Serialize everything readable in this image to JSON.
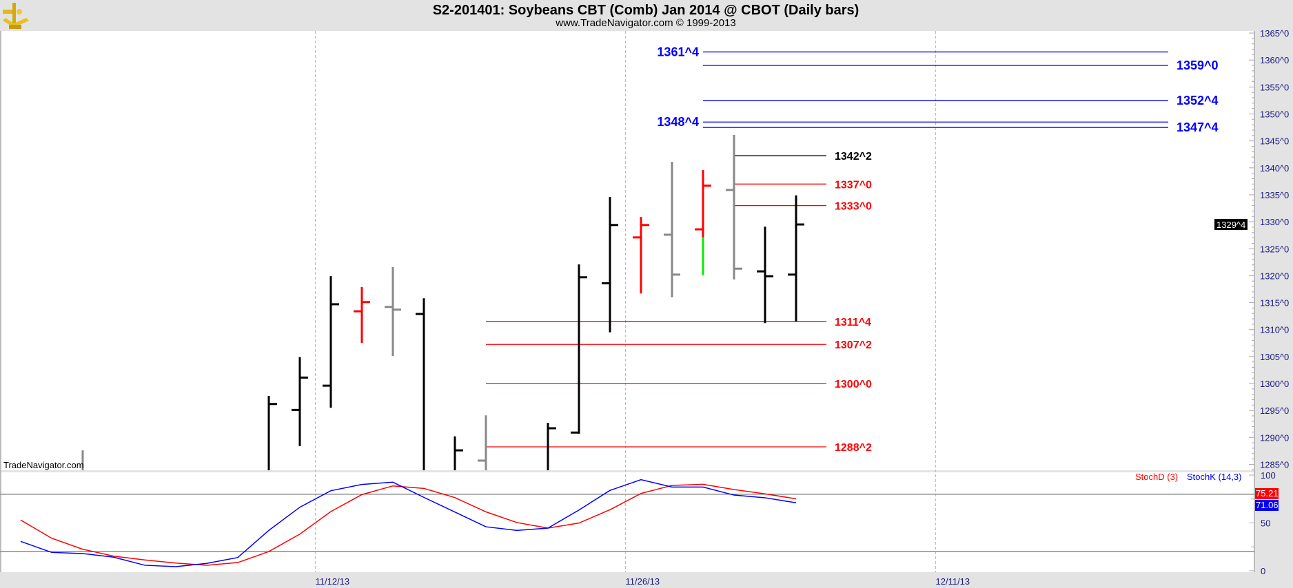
{
  "header": {
    "title": "S2-201401:  Soybeans CBT (Comb) Jan 2014 @ CBOT  (Daily bars)",
    "subtitle": "www.TradeNavigator.com © 1999-2013",
    "logo_icon": "sextant-icon"
  },
  "watermark": "TradeNavigator.com",
  "chart_data": [
    {
      "type": "ohlc-bar",
      "price_axis": {
        "range": [
          1283.8,
          1365.5
        ],
        "tick_step": 5,
        "tick_labels": [
          "1365^0",
          "1360^0",
          "1355^0",
          "1350^0",
          "1345^0",
          "1340^0",
          "1335^0",
          "1330^0",
          "1325^0",
          "1320^0",
          "1315^0",
          "1310^0",
          "1305^0",
          "1300^0",
          "1295^0",
          "1290^0",
          "1285^0"
        ],
        "tick_values": [
          1365,
          1360,
          1355,
          1350,
          1345,
          1340,
          1335,
          1330,
          1325,
          1320,
          1315,
          1310,
          1305,
          1300,
          1295,
          1290,
          1285
        ]
      },
      "price_notation": "cents^eighths",
      "last_price": {
        "label": "1329^4",
        "value": 1329.5
      },
      "date_labels": [
        {
          "label": "11/12/13",
          "date": "11/12"
        },
        {
          "label": "11/26/13",
          "date": "11/26"
        },
        {
          "label": "12/11/13",
          "date": "12/11"
        }
      ],
      "grid": "vertical dashed at date labels",
      "dates": [
        "10/29",
        "10/30",
        "10/31",
        "11/1",
        "11/4",
        "11/5",
        "11/6",
        "11/7",
        "11/8",
        "11/11",
        "11/12",
        "11/13",
        "11/14",
        "11/15",
        "11/18",
        "11/19",
        "11/20",
        "11/21",
        "11/22",
        "11/25",
        "11/26",
        "11/27",
        "11/29",
        "12/2",
        "12/3",
        "12/4",
        "12/5",
        "12/6",
        "12/9",
        "12/10",
        "12/11"
      ],
      "bars": [
        {
          "date": "10/31",
          "open": null,
          "high": 1287.6,
          "low": null,
          "close": null,
          "color": "#888888"
        },
        {
          "date": "11/8",
          "open": null,
          "high": 1297.7,
          "low": null,
          "close": 1296.2,
          "color": "#000000"
        },
        {
          "date": "11/11",
          "open": 1295.1,
          "high": 1304.9,
          "low": 1288.4,
          "close": 1301.1,
          "color": "#000000"
        },
        {
          "date": "11/12",
          "open": 1299.6,
          "high": 1319.9,
          "low": 1295.5,
          "close": 1314.7,
          "color": "#000000"
        },
        {
          "date": "11/13",
          "open": 1313.4,
          "high": 1317.9,
          "low": 1307.5,
          "close": 1315.1,
          "color": "#ff0000"
        },
        {
          "date": "11/14",
          "open": 1314.2,
          "high": 1321.6,
          "low": 1305.1,
          "close": 1313.7,
          "color": "#888888"
        },
        {
          "date": "11/15",
          "open": 1312.9,
          "high": 1315.8,
          "low": null,
          "close": null,
          "color": "#000000"
        },
        {
          "date": "11/18",
          "open": null,
          "high": 1290.2,
          "low": null,
          "close": 1287.6,
          "color": "#000000"
        },
        {
          "date": "11/19",
          "open": 1285.7,
          "high": 1294.1,
          "low": null,
          "close": null,
          "color": "#888888"
        },
        {
          "date": "11/21",
          "open": null,
          "high": 1292.7,
          "low": null,
          "close": 1291.7,
          "color": "#000000"
        },
        {
          "date": "11/22",
          "open": 1290.9,
          "high": 1322.1,
          "low": 1290.7,
          "close": 1319.7,
          "color": "#000000"
        },
        {
          "date": "11/25",
          "open": 1318.6,
          "high": 1334.6,
          "low": 1309.5,
          "close": 1329.4,
          "color": "#000000"
        },
        {
          "date": "11/26",
          "open": 1327.1,
          "high": 1330.9,
          "low": 1316.7,
          "close": 1329.4,
          "color": "#ff0000"
        },
        {
          "date": "11/27",
          "open": 1327.6,
          "high": 1341.1,
          "low": 1316.0,
          "close": 1320.2,
          "color": "#888888"
        },
        {
          "date": "11/29",
          "open": 1328.6,
          "high": 1339.6,
          "low": 1320.1,
          "close": 1336.7,
          "color": "#ff0000",
          "lower_color": "#00ee00",
          "lower_from": 1327.1
        },
        {
          "date": "12/2",
          "open": 1335.9,
          "high": 1346.1,
          "low": 1319.3,
          "close": 1321.3,
          "color": "#888888"
        },
        {
          "date": "12/3",
          "open": 1320.8,
          "high": 1329.1,
          "low": 1311.2,
          "close": 1319.9,
          "color": "#000000"
        },
        {
          "date": "12/4",
          "open": 1320.2,
          "high": 1334.9,
          "low": 1311.5,
          "close": 1329.5,
          "color": "#000000"
        }
      ],
      "levels": [
        {
          "label": "1361^4",
          "value": 1361.5,
          "color": "#0000ff",
          "from": "11/29",
          "to": "12/10",
          "label_side": "left"
        },
        {
          "label": "1359^0",
          "value": 1359.0,
          "color": "#0000ff",
          "from": "11/29",
          "to": "12/10",
          "label_side": "right"
        },
        {
          "label": "1352^4",
          "value": 1352.5,
          "color": "#0000ff",
          "from": "11/29",
          "to": "12/10",
          "label_side": "right"
        },
        {
          "label": "1348^4",
          "value": 1348.5,
          "color": "#0000ff",
          "from": "11/29",
          "to": "12/10",
          "label_side": "left"
        },
        {
          "label": "1347^4",
          "value": 1347.5,
          "color": "#0000ff",
          "from": "11/29",
          "to": "12/10",
          "label_side": "right"
        },
        {
          "label": "1342^2",
          "value": 1342.25,
          "color": "#000000",
          "from": "12/2",
          "to": "12/5",
          "label_side": "right"
        },
        {
          "label": "1337^0",
          "value": 1337.0,
          "color": "#ff0000",
          "from": "12/2",
          "to": "12/5",
          "label_side": "right"
        },
        {
          "label": "1333^0",
          "value": 1333.0,
          "color": "#ff0000",
          "from": "12/2",
          "to": "12/5",
          "label_side": "right"
        },
        {
          "label": "1311^4",
          "value": 1311.5,
          "color": "#ff0000",
          "from": "11/19",
          "to": "12/5",
          "label_side": "right"
        },
        {
          "label": "1307^2",
          "value": 1307.25,
          "color": "#ff0000",
          "from": "11/19",
          "to": "12/5",
          "label_side": "right"
        },
        {
          "label": "1300^0",
          "value": 1300.0,
          "color": "#ff0000",
          "from": "11/19",
          "to": "12/5",
          "label_side": "right"
        },
        {
          "label": "1288^2",
          "value": 1288.25,
          "color": "#ff0000",
          "from": "11/19",
          "to": "12/5",
          "label_side": "right"
        }
      ]
    },
    {
      "type": "line",
      "yrange": [
        0,
        100
      ],
      "tick_labels": [
        "100",
        "50",
        "0"
      ],
      "tick_values": [
        100,
        50,
        0
      ],
      "reference_lines": [
        80,
        20
      ],
      "legend_placement": "top-right",
      "x": [
        "10/29",
        "10/30",
        "10/31",
        "11/1",
        "11/4",
        "11/5",
        "11/6",
        "11/7",
        "11/8",
        "11/11",
        "11/12",
        "11/13",
        "11/14",
        "11/15",
        "11/18",
        "11/19",
        "11/20",
        "11/21",
        "11/22",
        "11/25",
        "11/26",
        "11/27",
        "11/29",
        "12/2",
        "12/3",
        "12/4"
      ],
      "series": [
        {
          "name": "StochD (3)",
          "color": "#ff0000",
          "last_label": "75.21",
          "values": [
            53,
            34,
            22.5,
            15.3,
            11.3,
            8.1,
            5.8,
            8.6,
            20.1,
            38.3,
            61.9,
            79.6,
            88.7,
            86.1,
            76.5,
            61.6,
            50.4,
            44.6,
            49.9,
            63.8,
            80.8,
            89.2,
            90.4,
            84.9,
            80.4,
            75.21
          ]
        },
        {
          "name": "StochK (14,3)",
          "color": "#0000ff",
          "last_label": "71.06",
          "values": [
            30.7,
            19.2,
            18,
            14.2,
            5.8,
            4.3,
            7.7,
            13.9,
            42.2,
            66.4,
            83.7,
            90.2,
            92.6,
            76.7,
            61.4,
            46,
            42.2,
            44.6,
            63.5,
            84,
            95.2,
            87.5,
            87.5,
            79.1,
            76.3,
            71.06
          ]
        }
      ]
    }
  ]
}
